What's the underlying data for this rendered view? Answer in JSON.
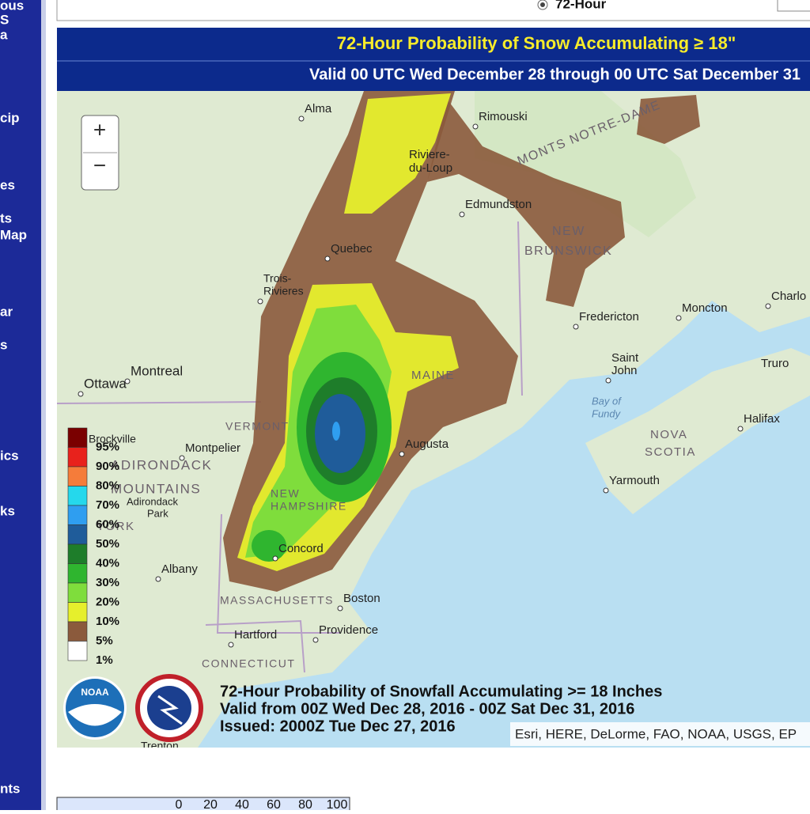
{
  "sidebar": {
    "items": [
      "ous",
      "S",
      "a",
      "cip",
      "es",
      "ts",
      "Map",
      "ar",
      "s",
      "ics",
      "ks",
      "nts"
    ]
  },
  "top_panel": {
    "radio_label": "72-Hour"
  },
  "header": {
    "title": "72-Hour Probability of Snow Accumulating ≥ 18\"",
    "subtitle": "Valid 00 UTC Wed December 28 through 00 UTC Sat December 31"
  },
  "map": {
    "zoom_in": "+",
    "zoom_out": "−",
    "places": [
      "Alma",
      "Rimouski",
      "Riviere-",
      "du-Loup",
      "MONTS NOTRE-DAME",
      "Edmundston",
      "NEW",
      "BRUNSWICK",
      "Quebec",
      "Trois-",
      "Rivieres",
      "Fredericton",
      "Moncton",
      "Charlo",
      "Saint",
      "John",
      "Truro",
      "Montreal",
      "Ottawa",
      "MAINE",
      "VERMONT",
      "Montpelier",
      "Augusta",
      "Halifax",
      "NOVA",
      "SCOTIA",
      "Yarmouth",
      "Bay of",
      "Fundy",
      "ADIRONDACK",
      "MOUNTAINS",
      "Adirondack",
      "Park",
      "NEW",
      "HAMPSHIRE",
      "Concord",
      "YORK",
      "Albany",
      "MASSACHUSETTS",
      "Boston",
      "Hartford",
      "Providence",
      "CONNECTICUT",
      "Brockville",
      "Trenton"
    ],
    "legend": {
      "labels": [
        "95%",
        "90%",
        "80%",
        "70%",
        "60%",
        "50%",
        "40%",
        "30%",
        "20%",
        "10%",
        "5%",
        "1%"
      ],
      "colors": [
        "#7a0000",
        "#e8221c",
        "#f57c3a",
        "#25d8ec",
        "#2f9ef0",
        "#1f5c9a",
        "#1e7d2a",
        "#2fb52f",
        "#7fdd3c",
        "#e6ef2c",
        "#8b5a3c",
        "#ffffff"
      ]
    },
    "caption": [
      "72-Hour Probability of Snowfall Accumulating >= 18 Inches",
      "Valid from 00Z Wed Dec 28, 2016 - 00Z Sat Dec 31, 2016",
      "Issued: 2000Z Tue Dec 27, 2016"
    ],
    "logo": "NOAA",
    "attribution": "Esri, HERE, DeLorme, FAO, NOAA, USGS, EP"
  },
  "bottom_table": {
    "scale": [
      "0",
      "20",
      "40",
      "60",
      "80",
      "100"
    ]
  }
}
